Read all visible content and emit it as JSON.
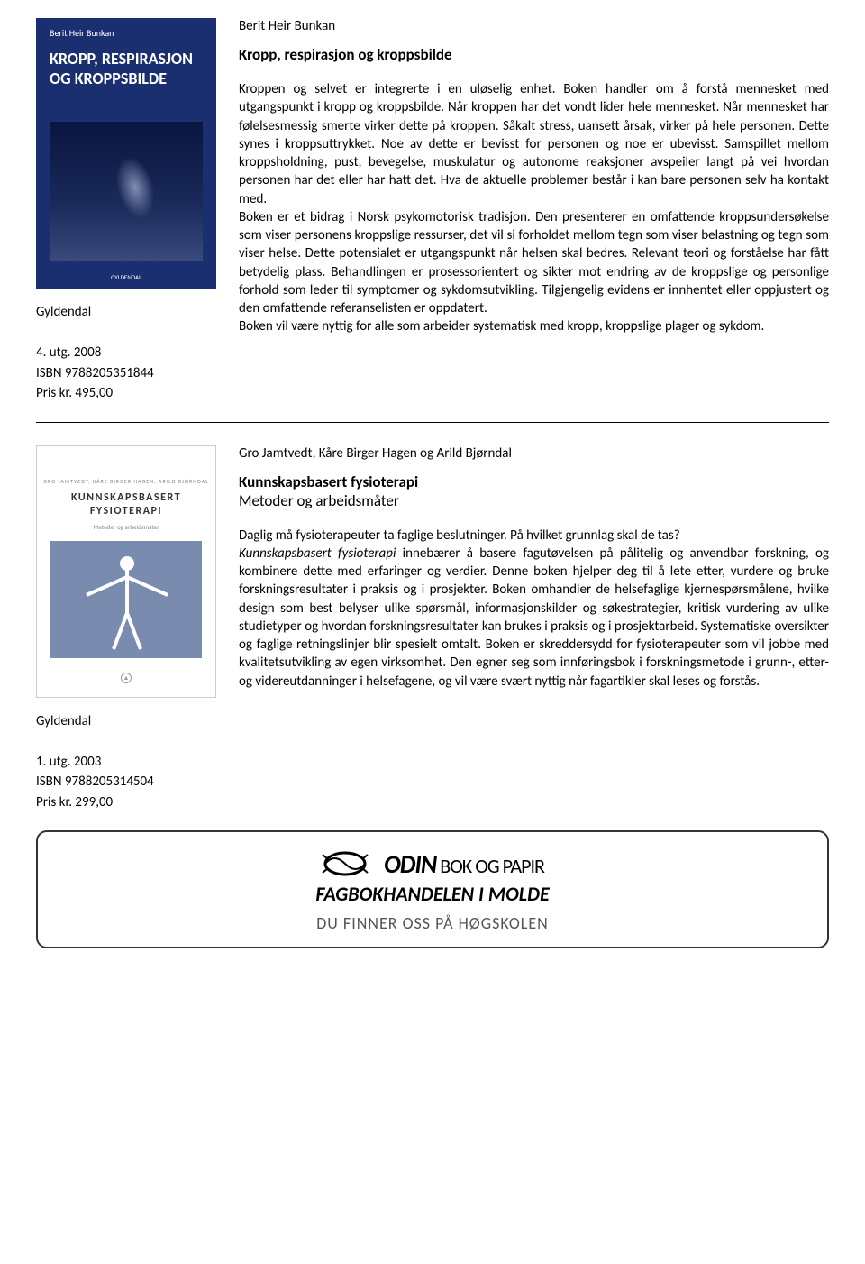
{
  "book1": {
    "cover": {
      "author": "Berit Heir Bunkan",
      "title": "KROPP, RESPIRASJON OG KROPPSBILDE",
      "logo": "GYLDENDAL"
    },
    "meta": {
      "publisher": "Gyldendal",
      "edition": "4. utg. 2008",
      "isbn": "ISBN 9788205351844",
      "price": "Pris kr. 495,00"
    },
    "author": "Berit Heir Bunkan",
    "title": "Kropp, respirasjon og kroppsbilde",
    "description": "Kroppen og selvet er integrerte i en uløselig enhet. Boken handler om å forstå mennesket med utgangspunkt i kropp og kroppsbilde. Når kroppen har det vondt lider hele mennesket. Når mennesket har følelsesmessig smerte virker dette på kroppen. Såkalt stress, uansett årsak, virker på hele personen. Dette synes i kroppsuttrykket. Noe av dette er bevisst for personen og noe er ubevisst. Samspillet mellom kroppsholdning, pust, bevegelse, muskulatur og autonome reaksjoner avspeiler langt på vei hvordan personen har det eller har hatt det. Hva de aktuelle problemer består i kan bare personen selv ha kontakt med.\nBoken er et bidrag i Norsk psykomotorisk tradisjon. Den presenterer en omfattende kroppsundersøkelse som viser personens kroppslige ressurser, det vil si forholdet mellom tegn som viser belastning og tegn som viser helse. Dette potensialet er utgangspunkt når helsen skal bedres. Relevant teori og forståelse har fått betydelig plass. Behandlingen er prosessorientert og sikter mot endring av de kroppslige og personlige forhold som leder til symptomer og sykdomsutvikling. Tilgjengelig evidens er innhentet eller oppjustert og den omfattende referanselisten er oppdatert.\nBoken vil være nyttig for alle som arbeider systematisk med kropp, kroppslige plager og sykdom."
  },
  "book2": {
    "cover": {
      "authors": "GRO JAMTVEDT, KÅRE BIRGER HAGEN, ARILD BJØRNDAL",
      "title": "KUNNSKAPSBASERT FYSIOTERAPI",
      "subtitle": "Metoder og arbeidsmåter"
    },
    "meta": {
      "publisher": "Gyldendal",
      "edition": "1. utg. 2003",
      "isbn": "ISBN 9788205314504",
      "price": "Pris kr. 299,00"
    },
    "author": "Gro Jamtvedt, Kåre Birger Hagen og Arild Bjørndal",
    "title": "Kunnskapsbasert fysioterapi",
    "subtitle": "Metoder og arbeidsmåter",
    "desc_intro": "Daglig må fysioterapeuter ta faglige beslutninger. På hvilket grunnlag skal de tas?",
    "desc_italic": "Kunnskapsbasert fysioterapi",
    "desc_rest": " innebærer å basere fagutøvelsen på pålitelig og anvendbar forskning, og kombinere dette med erfaringer og verdier. Denne boken hjelper deg til å lete etter, vurdere og bruke forskningsresultater i praksis og i prosjekter. Boken omhandler de helsefaglige kjernespørsmålene, hvilke design som best belyser ulike spørsmål, informasjonskilder og søkestrategier, kritisk vurdering av ulike studietyper og hvordan forskningsresultater kan brukes i praksis og i prosjektarbeid. Systematiske oversikter og faglige retningslinjer blir spesielt omtalt. Boken er skreddersydd for fysioterapeuter som vil jobbe med kvalitetsutvikling av egen virksomhet. Den egner seg som innføringsbok i forskningsmetode i grunn-, etter- og videreutdanninger i helsefagene, og vil være svært nyttig når fagartikler skal leses og forstås."
  },
  "banner": {
    "name_bold": "ODIN",
    "name_rest": " BOK OG PAPIR",
    "tagline": "FAGBOKHANDELEN I MOLDE",
    "location": "DU FINNER OSS PÅ HØGSKOLEN"
  }
}
